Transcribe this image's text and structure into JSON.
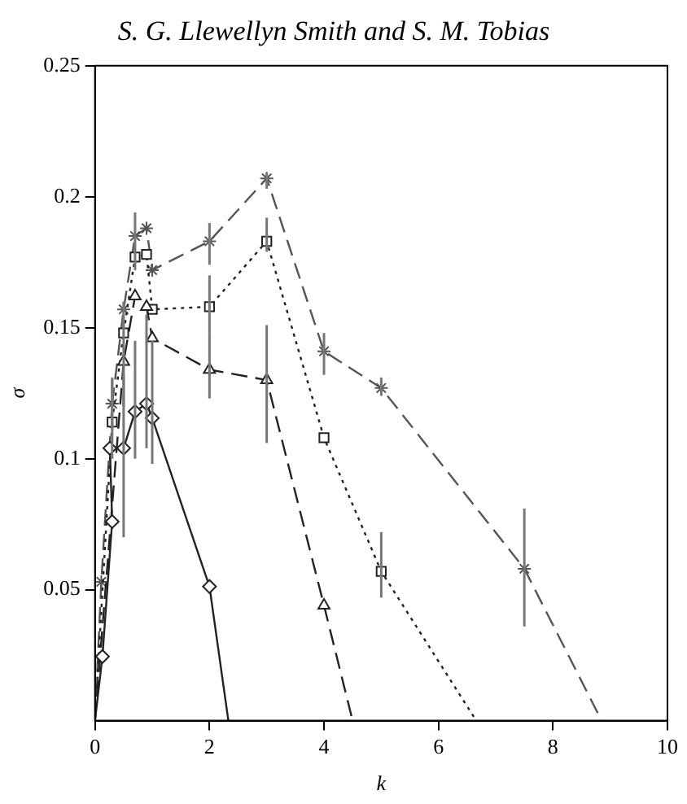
{
  "chart_data": {
    "type": "line",
    "title": "S. G. Llewellyn Smith and S. M. Tobias",
    "xlabel": "k",
    "ylabel": "σ",
    "xlim": [
      0,
      10
    ],
    "xticks": [
      0,
      2,
      4,
      6,
      8,
      10
    ],
    "ylim": [
      0,
      0.25
    ],
    "yticks": [
      0.05,
      0.1,
      0.15,
      0.2,
      0.25
    ],
    "grid": false,
    "legend": false,
    "series": [
      {
        "color": "#555555",
        "marker": "cross",
        "line_style": "dashed",
        "x": [
          0,
          0.11,
          0.3,
          0.5,
          0.7,
          0.9,
          1.0,
          2,
          3,
          4,
          5,
          7.5,
          8.85
        ],
        "values": [
          0,
          0.053,
          0.121,
          0.157,
          0.185,
          0.188,
          0.172,
          0.183,
          0.207,
          0.141,
          0.127,
          0.058,
          0
        ],
        "errors": [
          null,
          null,
          [
            0.111,
            0.131
          ],
          null,
          [
            0.172,
            0.194
          ],
          null,
          null,
          [
            0.174,
            0.19
          ],
          [
            0.203,
            0.209
          ],
          [
            0.132,
            0.148
          ],
          [
            0.124,
            0.131
          ],
          [
            0.036,
            0.081
          ],
          null
        ]
      },
      {
        "color": "#222222",
        "marker": "square",
        "line_style": "dotted",
        "x": [
          0,
          0.3,
          0.5,
          0.7,
          0.9,
          1.0,
          2,
          3,
          4,
          5,
          6.66
        ],
        "values": [
          0,
          0.114,
          0.148,
          0.177,
          0.178,
          0.157,
          0.158,
          0.183,
          0.108,
          0.057,
          0
        ],
        "errors": [
          null,
          [
            0.1,
            0.13
          ],
          [
            0.12,
            0.16
          ],
          null,
          null,
          null,
          [
            0.148,
            0.17
          ],
          [
            0.179,
            0.192
          ],
          null,
          [
            0.047,
            0.072
          ],
          null
        ]
      },
      {
        "color": "#222222",
        "marker": "triangle",
        "line_style": "dashed",
        "x": [
          0,
          0.5,
          0.7,
          0.9,
          1.0,
          2,
          3,
          4,
          4.5
        ],
        "values": [
          0,
          0.137,
          0.162,
          0.158,
          0.146,
          0.134,
          0.13,
          0.044,
          0
        ],
        "errors": [
          null,
          null,
          null,
          null,
          null,
          [
            0.123,
            0.148
          ],
          [
            0.106,
            0.151
          ],
          null,
          null
        ]
      },
      {
        "color": "#222222",
        "marker": "diamond",
        "line_style": "solid",
        "x": [
          0,
          0.13,
          0.3,
          0.26,
          0.5,
          0.7,
          0.9,
          1.0,
          2,
          2.33
        ],
        "values": [
          0,
          0.0245,
          0.076,
          0.104,
          0.104,
          0.118,
          0.121,
          0.1155,
          0.0512,
          0
        ],
        "errors": [
          null,
          null,
          null,
          null,
          [
            0.07,
            0.132
          ],
          [
            0.1,
            0.145
          ],
          [
            0.104,
            0.155
          ],
          [
            0.098,
            0.145
          ],
          null,
          null
        ]
      }
    ]
  }
}
